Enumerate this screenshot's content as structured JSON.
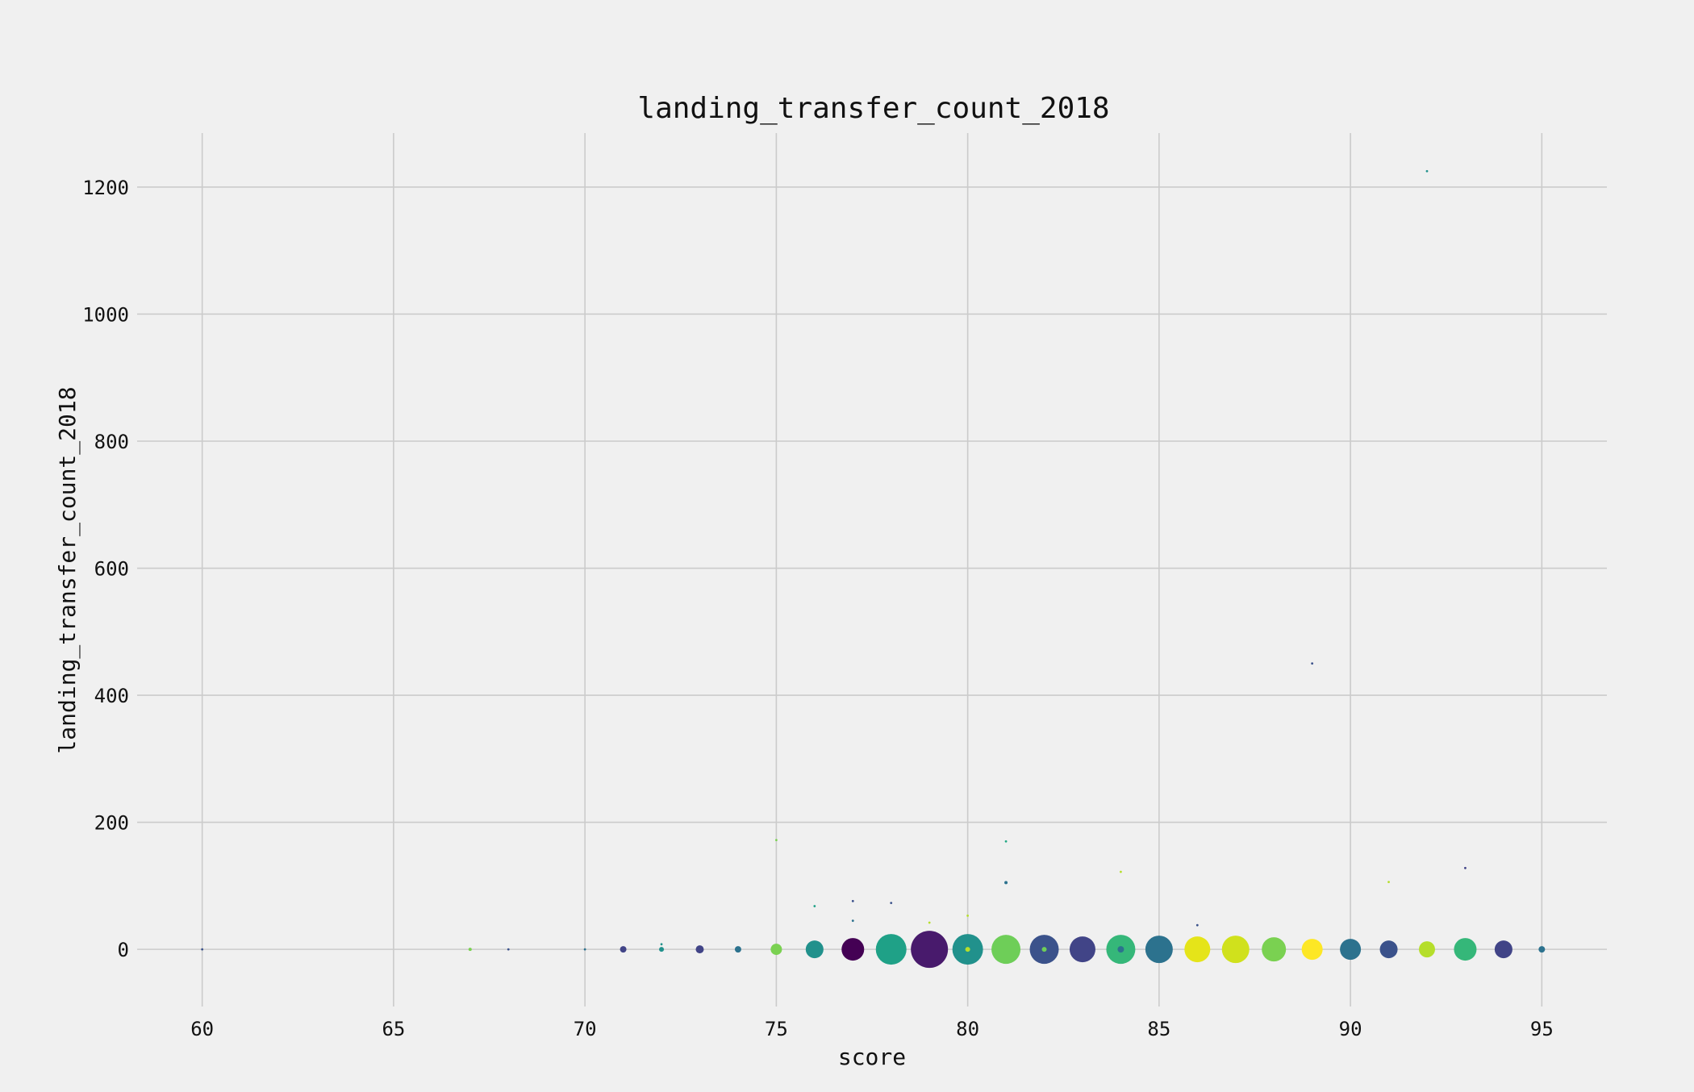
{
  "chart_data": {
    "type": "scatter",
    "title": "landing_transfer_count_2018",
    "xlabel": "score",
    "ylabel": "landing_transfer_count_2018",
    "xlim": [
      58.3,
      96.7
    ],
    "ylim": [
      -90,
      1285
    ],
    "xticks": [
      60,
      65,
      70,
      75,
      80,
      85,
      90,
      95
    ],
    "yticks": [
      0,
      200,
      400,
      600,
      800,
      1000,
      1200
    ],
    "grid": true,
    "legend": "none",
    "colormap": "viridis",
    "points": [
      {
        "x": 60,
        "y": 0,
        "size": 1,
        "color": "#3b528b"
      },
      {
        "x": 67,
        "y": 0,
        "size": 2,
        "color": "#7ad151"
      },
      {
        "x": 68,
        "y": 0,
        "size": 1,
        "color": "#3b528b"
      },
      {
        "x": 70,
        "y": 0,
        "size": 1,
        "color": "#2c728e"
      },
      {
        "x": 71,
        "y": 0,
        "size": 4,
        "color": "#414487"
      },
      {
        "x": 72,
        "y": 0,
        "size": 3,
        "color": "#21918c"
      },
      {
        "x": 72,
        "y": 8,
        "size": 1,
        "color": "#21918c"
      },
      {
        "x": 73,
        "y": 0,
        "size": 5,
        "color": "#414487"
      },
      {
        "x": 74,
        "y": 0,
        "size": 4,
        "color": "#2c728e"
      },
      {
        "x": 75,
        "y": 0,
        "size": 7,
        "color": "#7ad151"
      },
      {
        "x": 75,
        "y": 172,
        "size": 1,
        "color": "#7ad151"
      },
      {
        "x": 76,
        "y": 0,
        "size": 11,
        "color": "#21918c"
      },
      {
        "x": 76,
        "y": 68,
        "size": 1,
        "color": "#1fa187"
      },
      {
        "x": 77,
        "y": 0,
        "size": 14,
        "color": "#440154"
      },
      {
        "x": 77,
        "y": 45,
        "size": 1,
        "color": "#2c728e"
      },
      {
        "x": 77,
        "y": 76,
        "size": 1,
        "color": "#3b528b"
      },
      {
        "x": 78,
        "y": 0,
        "size": 19,
        "color": "#1fa187"
      },
      {
        "x": 78,
        "y": 73,
        "size": 1,
        "color": "#3b528b"
      },
      {
        "x": 79,
        "y": 0,
        "size": 23,
        "color": "#481a6c"
      },
      {
        "x": 79,
        "y": 42,
        "size": 1,
        "color": "#b5de2b"
      },
      {
        "x": 80,
        "y": 0,
        "size": 19,
        "color": "#21918c"
      },
      {
        "x": 80,
        "y": 0,
        "size": 3,
        "color": "#b5de2b"
      },
      {
        "x": 80,
        "y": 53,
        "size": 1,
        "color": "#b5de2b"
      },
      {
        "x": 81,
        "y": 0,
        "size": 18,
        "color": "#6ece58"
      },
      {
        "x": 81,
        "y": 105,
        "size": 2,
        "color": "#2c728e"
      },
      {
        "x": 81,
        "y": 170,
        "size": 1,
        "color": "#22a884"
      },
      {
        "x": 82,
        "y": 0,
        "size": 18,
        "color": "#3b528b"
      },
      {
        "x": 82,
        "y": 0,
        "size": 3,
        "color": "#6ece58"
      },
      {
        "x": 83,
        "y": 0,
        "size": 16,
        "color": "#414487"
      },
      {
        "x": 84,
        "y": 0,
        "size": 18,
        "color": "#35b779"
      },
      {
        "x": 84,
        "y": 0,
        "size": 4,
        "color": "#2c728e"
      },
      {
        "x": 84,
        "y": 122,
        "size": 1,
        "color": "#b5de2b"
      },
      {
        "x": 85,
        "y": 0,
        "size": 17,
        "color": "#2c728e"
      },
      {
        "x": 86,
        "y": 0,
        "size": 16,
        "color": "#e5e419"
      },
      {
        "x": 86,
        "y": 38,
        "size": 1,
        "color": "#3b528b"
      },
      {
        "x": 87,
        "y": 0,
        "size": 17,
        "color": "#d0e11c"
      },
      {
        "x": 88,
        "y": 0,
        "size": 15,
        "color": "#7ad151"
      },
      {
        "x": 89,
        "y": 0,
        "size": 13,
        "color": "#fde725"
      },
      {
        "x": 89,
        "y": 450,
        "size": 1,
        "color": "#3b528b"
      },
      {
        "x": 90,
        "y": 0,
        "size": 13,
        "color": "#2c728e"
      },
      {
        "x": 91,
        "y": 0,
        "size": 11,
        "color": "#3b528b"
      },
      {
        "x": 91,
        "y": 106,
        "size": 1,
        "color": "#b5de2b"
      },
      {
        "x": 92,
        "y": 0,
        "size": 10,
        "color": "#b5de2b"
      },
      {
        "x": 92,
        "y": 1225,
        "size": 1,
        "color": "#21918c"
      },
      {
        "x": 93,
        "y": 0,
        "size": 14,
        "color": "#35b779"
      },
      {
        "x": 93,
        "y": 128,
        "size": 1,
        "color": "#414487"
      },
      {
        "x": 94,
        "y": 0,
        "size": 11,
        "color": "#414487"
      },
      {
        "x": 95,
        "y": 0,
        "size": 4,
        "color": "#2c728e"
      }
    ]
  }
}
